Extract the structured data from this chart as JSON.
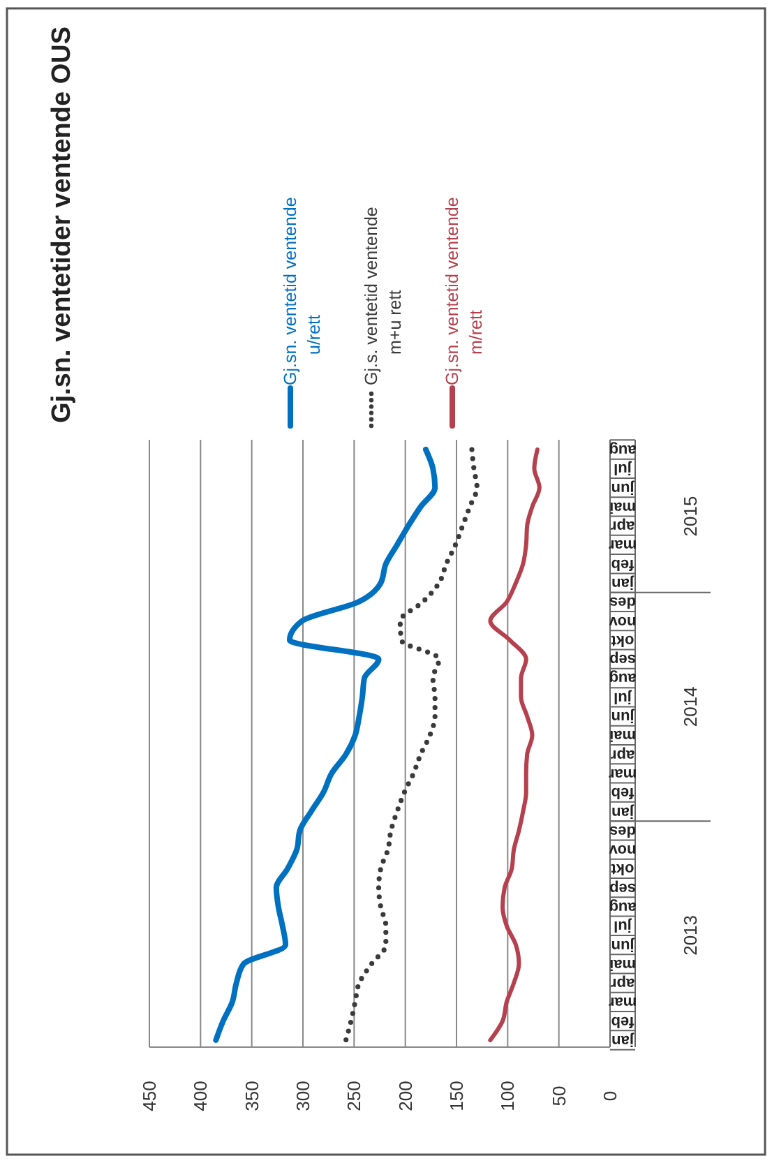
{
  "chart_data": {
    "type": "line",
    "orientation": "horizontal",
    "title": "Gj.sn. ventetider ventende OUS",
    "categories": [
      "aug",
      "jul",
      "jun",
      "mai",
      "apr",
      "mar",
      "feb",
      "jan",
      "des",
      "nov",
      "okt",
      "sep",
      "aug",
      "jul",
      "jun",
      "mai",
      "apr",
      "mar",
      "feb",
      "jan",
      "des",
      "nov",
      "okt",
      "sep",
      "aug",
      "jul",
      "jun",
      "mai",
      "apr",
      "mar",
      "feb",
      "jan"
    ],
    "annotations": [
      "2015",
      "2014",
      "2013"
    ],
    "series": [
      {
        "name": "Gj.sn. ventetid ventende u/rett",
        "color": "#0070c0",
        "line_style": "solid",
        "values": [
          180,
          173,
          171,
          185,
          197,
          208,
          219,
          224,
          246,
          301,
          313,
          226,
          240,
          242,
          245,
          249,
          258,
          272,
          280,
          292,
          303,
          306,
          315,
          326,
          324,
          320,
          317,
          358,
          365,
          369,
          378,
          385
        ]
      },
      {
        "name": "Gj.s. ventetid ventende m+u rett",
        "color": "#3a3a3a",
        "line_style": "dotted",
        "values": [
          135,
          133,
          130,
          137,
          144,
          151,
          160,
          167,
          183,
          205,
          204,
          167,
          173,
          171,
          171,
          176,
          185,
          192,
          201,
          208,
          214,
          217,
          224,
          226,
          224,
          219,
          219,
          233,
          245,
          249,
          253,
          258
        ]
      },
      {
        "name": "Gj.sn. ventetid ventende m/rett",
        "color": "#b5404e",
        "line_style": "solid",
        "values": [
          71,
          74,
          69,
          76,
          81,
          82,
          85,
          92,
          101,
          117,
          98,
          82,
          87,
          87,
          81,
          76,
          81,
          82,
          82,
          85,
          89,
          94,
          96,
          103,
          105,
          101,
          92,
          89,
          94,
          101,
          105,
          117
        ]
      }
    ],
    "xlim": [
      450,
      0
    ],
    "xticks": [
      450,
      400,
      350,
      300,
      250,
      200,
      150,
      100,
      50,
      0
    ],
    "grid": "x",
    "legend": "top"
  }
}
